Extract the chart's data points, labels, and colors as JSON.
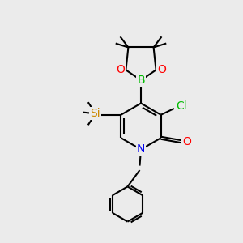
{
  "background_color": "#ebebeb",
  "atom_colors": {
    "C": "#000000",
    "N": "#0000ee",
    "O": "#ff0000",
    "B": "#00bb00",
    "Si": "#cc8800",
    "Cl": "#00bb00"
  },
  "bond_color": "#000000",
  "bond_width": 1.5,
  "font_size": 10,
  "figsize": [
    3.0,
    3.0
  ],
  "dpi": 100
}
